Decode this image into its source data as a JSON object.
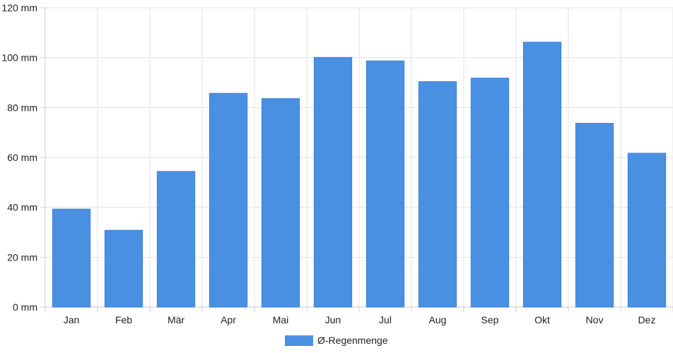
{
  "chart_data": {
    "type": "bar",
    "categories": [
      "Jan",
      "Feb",
      "Mär",
      "Apr",
      "Mai",
      "Jun",
      "Jul",
      "Aug",
      "Sep",
      "Okt",
      "Nov",
      "Dez"
    ],
    "series": [
      {
        "name": "Ø-Regenmenge",
        "values": [
          39.3,
          30.8,
          54.4,
          85.7,
          83.6,
          100.1,
          98.7,
          90.4,
          91.8,
          106.2,
          73.7,
          61.7
        ],
        "color": "#4a90e2"
      }
    ],
    "y_ticks": [
      "0 mm",
      "20 mm",
      "40 mm",
      "60 mm",
      "80 mm",
      "100 mm",
      "120 mm"
    ],
    "ylim": [
      0,
      120
    ],
    "y_step": 20,
    "grid": true,
    "legend_position": "bottom-center"
  }
}
